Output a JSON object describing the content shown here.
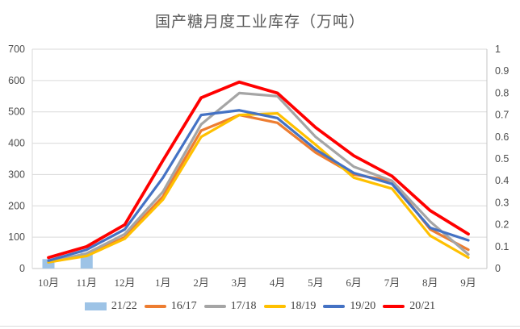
{
  "title": "国产糖月度工业库存（万吨）",
  "chart_data": {
    "type": "combo-bar-line",
    "title": "国产糖月度工业库存（万吨）",
    "categories": [
      "10月",
      "11月",
      "12月",
      "1月",
      "2月",
      "3月",
      "4月",
      "5月",
      "6月",
      "7月",
      "8月",
      "9月"
    ],
    "left_axis": {
      "min": 0,
      "max": 700,
      "step": 100,
      "ticks": [
        "0",
        "100",
        "200",
        "300",
        "400",
        "500",
        "600",
        "700"
      ]
    },
    "right_axis": {
      "min": 0,
      "max": 1,
      "step": 0.1,
      "ticks": [
        "0",
        "0.1",
        "0.2",
        "0.3",
        "0.4",
        "0.5",
        "0.6",
        "0.7",
        "0.8",
        "0.9",
        "1"
      ]
    },
    "grid": true,
    "legend_position": "bottom",
    "series": [
      {
        "name": "21/22",
        "type": "bar",
        "color": "#9DC3E6",
        "values": [
          30,
          50,
          null,
          null,
          null,
          null,
          null,
          null,
          null,
          null,
          null,
          null
        ]
      },
      {
        "name": "16/17",
        "type": "line",
        "color": "#ED7D31",
        "width": 3.2,
        "values": [
          20,
          42,
          100,
          230,
          440,
          490,
          465,
          370,
          300,
          280,
          125,
          60
        ]
      },
      {
        "name": "17/18",
        "type": "line",
        "color": "#A5A5A5",
        "width": 3.2,
        "values": [
          20,
          48,
          110,
          245,
          460,
          560,
          550,
          420,
          325,
          280,
          150,
          45
        ]
      },
      {
        "name": "18/19",
        "type": "line",
        "color": "#FFC000",
        "width": 3.2,
        "values": [
          20,
          40,
          95,
          220,
          420,
          490,
          495,
          395,
          290,
          255,
          105,
          35
        ]
      },
      {
        "name": "19/20",
        "type": "line",
        "color": "#4472C4",
        "width": 3.2,
        "values": [
          25,
          60,
          125,
          290,
          490,
          505,
          480,
          380,
          305,
          270,
          130,
          90
        ]
      },
      {
        "name": "20/21",
        "type": "line",
        "color": "#FF0000",
        "width": 3.8,
        "values": [
          35,
          70,
          140,
          345,
          545,
          595,
          560,
          450,
          360,
          295,
          185,
          110
        ]
      }
    ],
    "colors": {
      "grid": "#D9D9D9",
      "axis_line": "#C6C6C6",
      "axis_text": "#4D4D4D",
      "title_text": "#595959"
    }
  }
}
